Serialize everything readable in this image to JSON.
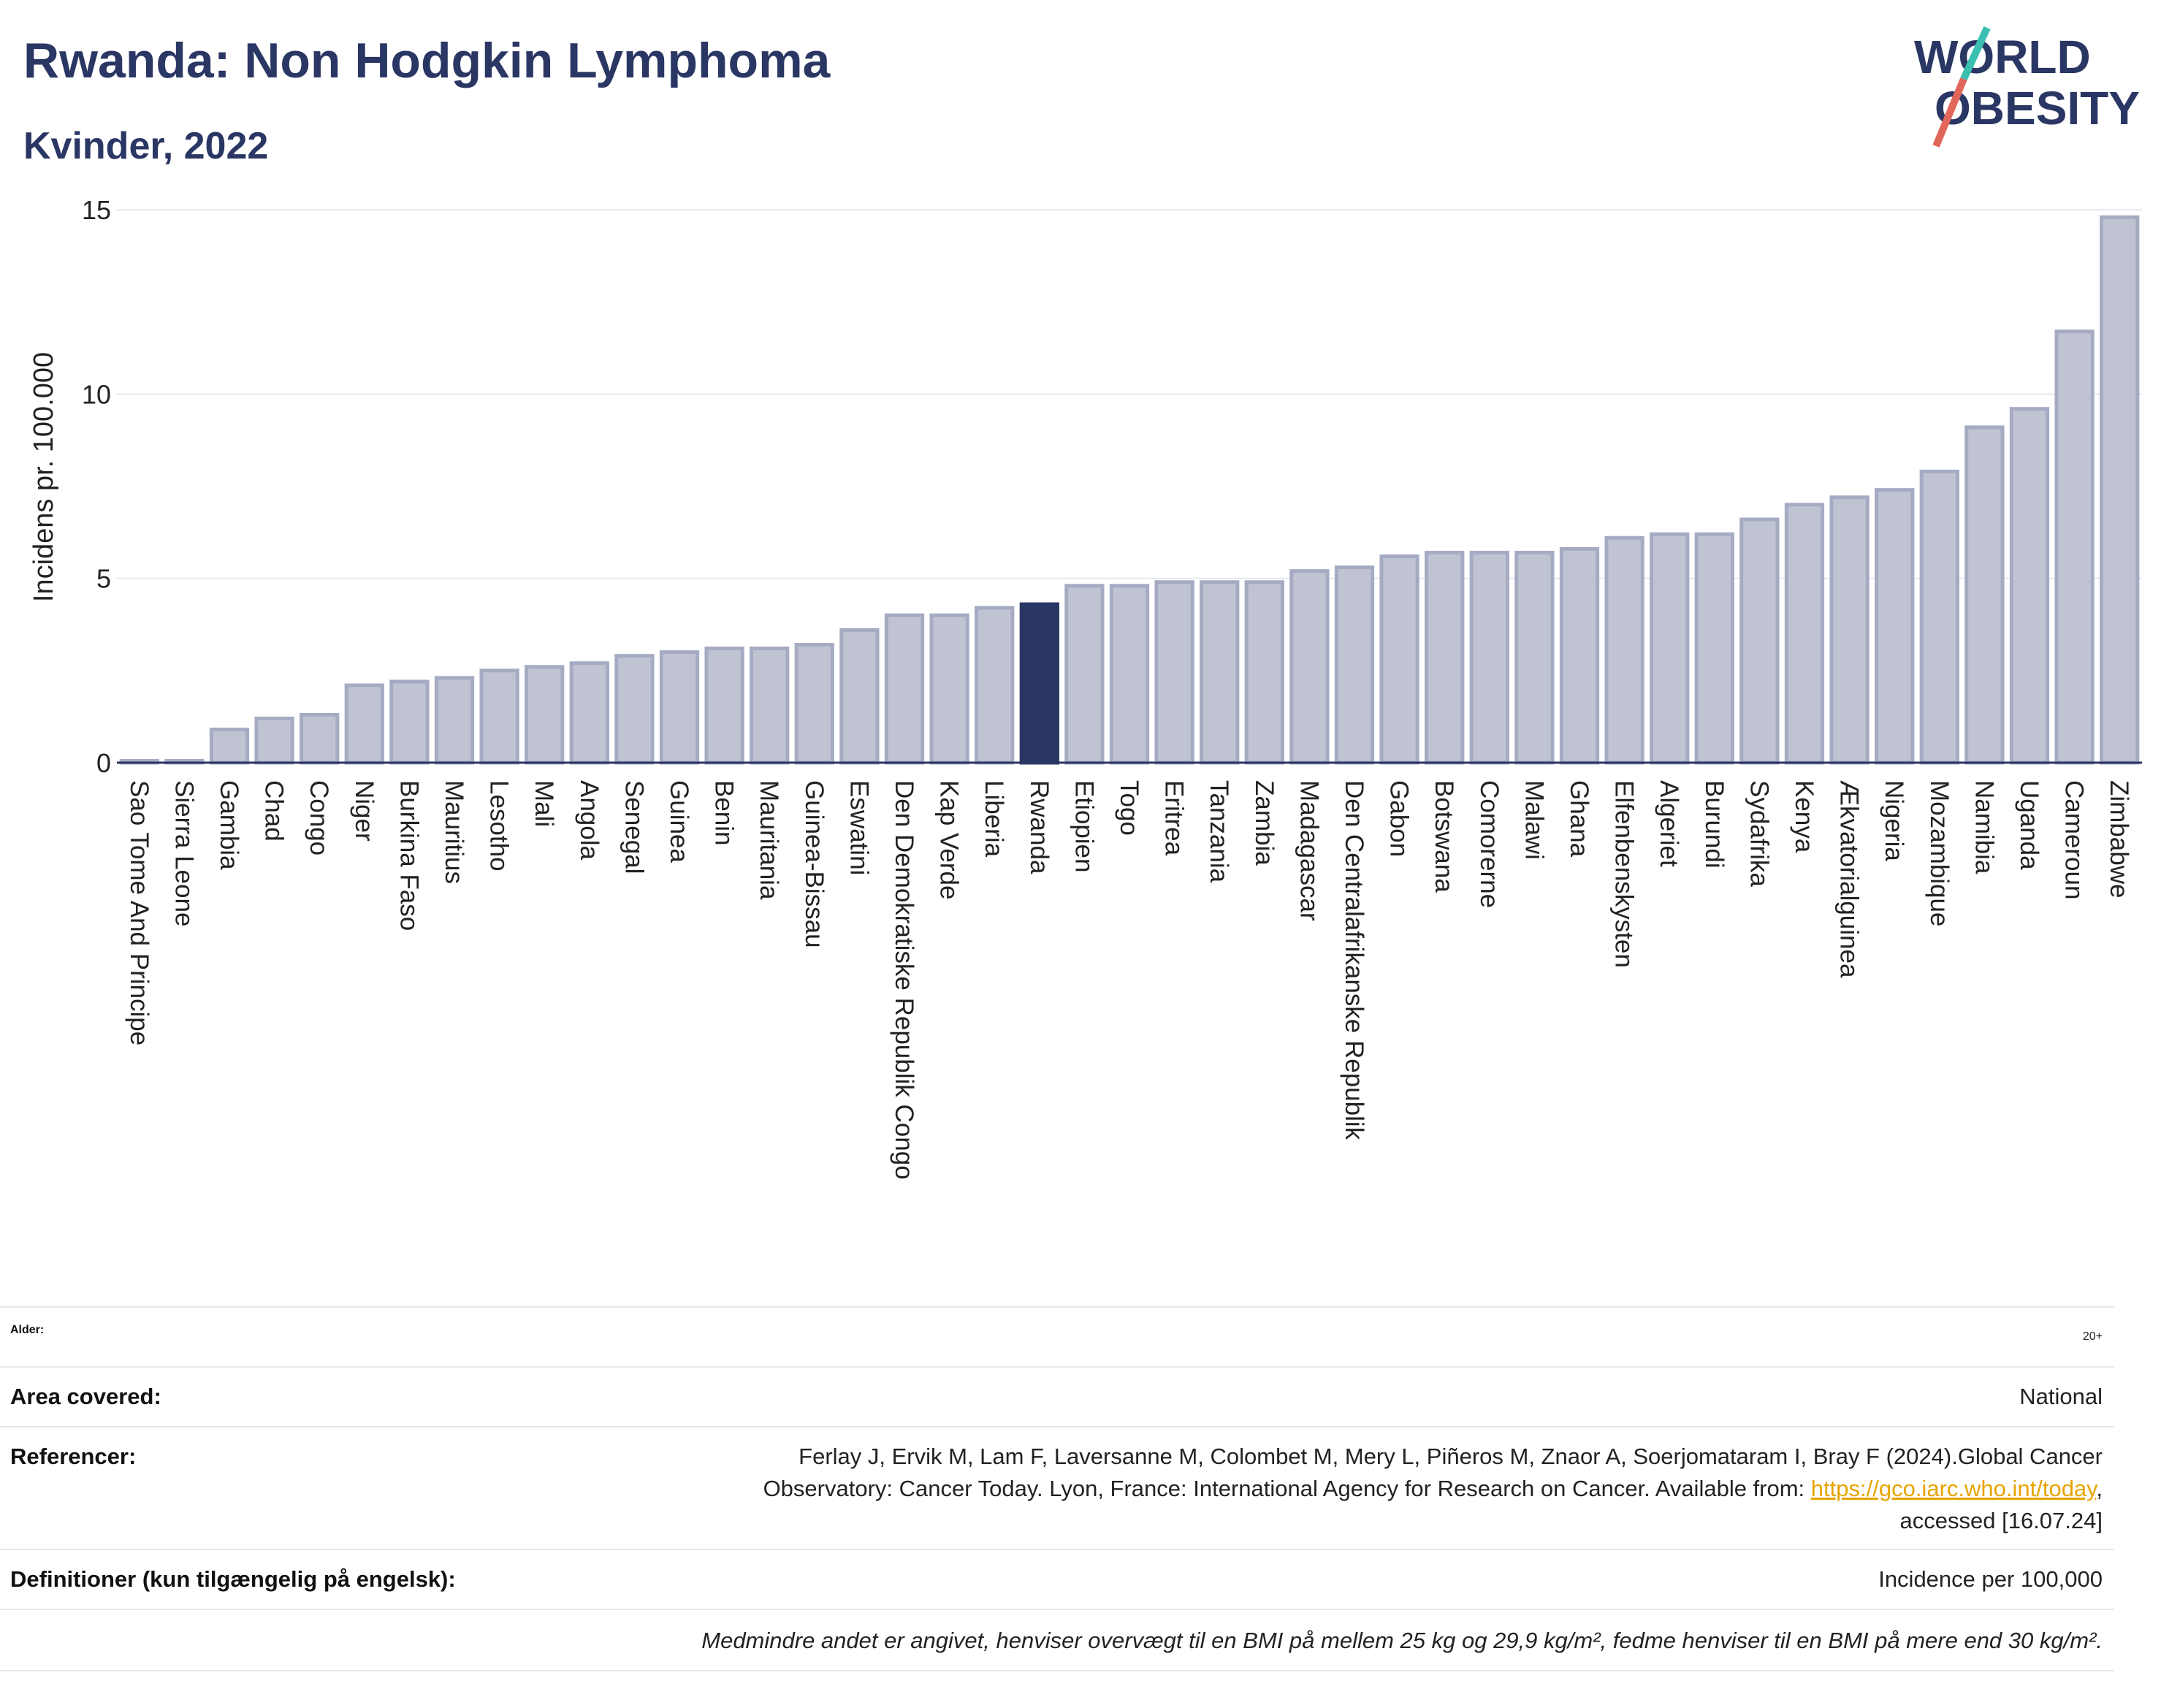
{
  "header": {
    "title": "Rwanda: Non Hodgkin Lymphoma",
    "subtitle": "Kvinder, 2022"
  },
  "logo": {
    "line1": "WORLD",
    "line2": "OBESITY"
  },
  "chart_data": {
    "type": "bar",
    "ylabel": "Incidens pr. 100.000",
    "ylim": [
      0,
      15.5
    ],
    "yticks": [
      0,
      5,
      10,
      15
    ],
    "grid": true,
    "highlight": "Rwanda",
    "colors": {
      "bar": "#c0c4d2",
      "bar_edge": "#a6abc4",
      "highlight": "#2a3663",
      "grid": "#e6e8ef",
      "axis": "#2a3663"
    },
    "categories": [
      "Sao Tome And Principe",
      "Sierra Leone",
      "Gambia",
      "Chad",
      "Congo",
      "Niger",
      "Burkina Faso",
      "Mauritius",
      "Lesotho",
      "Mali",
      "Angola",
      "Senegal",
      "Guinea",
      "Benin",
      "Mauritania",
      "Guinea-Bissau",
      "Eswatini",
      "Den Demokratiske Republik Congo",
      "Kap Verde",
      "Liberia",
      "Rwanda",
      "Etiopien",
      "Togo",
      "Eritrea",
      "Tanzania",
      "Zambia",
      "Madagascar",
      "Den Centralafrikanske Republik",
      "Gabon",
      "Botswana",
      "Comorerne",
      "Malawi",
      "Ghana",
      "Elfenbenskysten",
      "Algeriet",
      "Burundi",
      "Sydafrika",
      "Kenya",
      "Ækvatorialguinea",
      "Nigeria",
      "Mozambique",
      "Namibia",
      "Uganda",
      "Cameroun",
      "Zimbabwe"
    ],
    "values": [
      0.05,
      0.05,
      0.9,
      1.2,
      1.3,
      2.1,
      2.2,
      2.3,
      2.5,
      2.6,
      2.7,
      2.9,
      3.0,
      3.1,
      3.1,
      3.2,
      3.6,
      4.0,
      4.0,
      4.2,
      4.3,
      4.8,
      4.8,
      4.9,
      4.9,
      4.9,
      5.2,
      5.3,
      5.6,
      5.7,
      5.7,
      5.7,
      5.8,
      6.1,
      6.2,
      6.2,
      6.6,
      7.0,
      7.2,
      7.4,
      7.9,
      9.1,
      9.6,
      11.7,
      14.8
    ]
  },
  "meta": {
    "age_label": "Alder:",
    "age_value": "20+",
    "area_label": "Area covered:",
    "area_value": "National",
    "ref_label": "Referencer:",
    "ref_line1": "Ferlay J, Ervik M, Lam F, Laversanne M, Colombet M, Mery L, Piñeros M, Znaor A, Soerjomataram I, Bray F (2024).Global Cancer",
    "ref_line2a": "Observatory: Cancer Today. Lyon, France: International Agency for Research on Cancer. Available from: ",
    "ref_link": "https://gco.iarc.who.int/today",
    "ref_line2b": ",",
    "ref_line3": "accessed [16.07.24]",
    "def_label": "Definitioner (kun tilgængelig på engelsk):",
    "def_value": "Incidence per 100,000",
    "note": "Medmindre andet er angivet, henviser overvægt til en BMI på mellem 25 kg og 29,9 kg/m², fedme henviser til en BMI på mere end 30 kg/m²."
  }
}
